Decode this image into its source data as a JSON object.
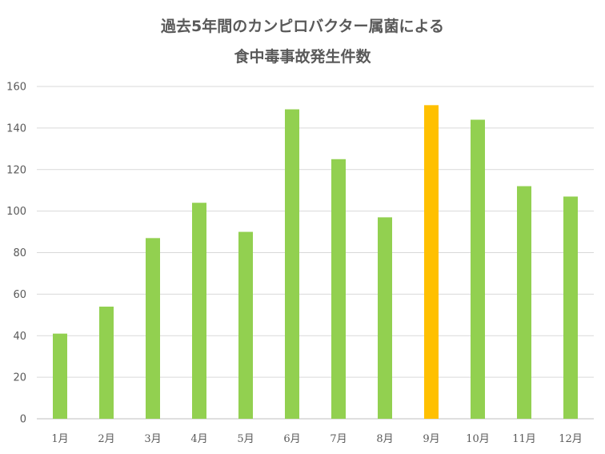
{
  "chart_data": {
    "type": "bar",
    "title": [
      "過去5年間のカンピロバクター属菌による",
      "食中毒事故発生件数"
    ],
    "xlabel": "",
    "ylabel": "",
    "categories": [
      "1月",
      "2月",
      "3月",
      "4月",
      "5月",
      "6月",
      "7月",
      "8月",
      "9月",
      "10月",
      "11月",
      "12月"
    ],
    "values": [
      41,
      54,
      87,
      104,
      90,
      149,
      125,
      97,
      151,
      144,
      112,
      107
    ],
    "ylim": [
      0,
      160
    ],
    "yticks": [
      0,
      20,
      40,
      60,
      80,
      100,
      120,
      140,
      160
    ],
    "grid": true,
    "legend": "none",
    "colors": {
      "default_bar": "#92d050",
      "highlight_bar": "#ffc000",
      "text": "#595959",
      "grid": "#d9d9d9"
    },
    "highlight_categories": [
      "9月"
    ]
  }
}
